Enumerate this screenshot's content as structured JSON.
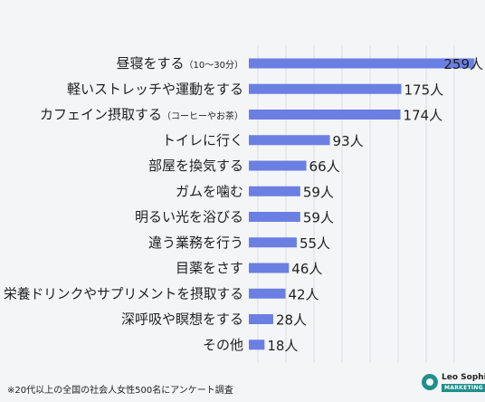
{
  "chart_data": {
    "type": "bar",
    "orientation": "horizontal",
    "categories": [
      {
        "main": "昼寝をする",
        "sub": "（10〜30分）"
      },
      {
        "main": "軽いストレッチや運動をする",
        "sub": ""
      },
      {
        "main": "カフェイン摂取する",
        "sub": "（コーヒーやお茶）"
      },
      {
        "main": "トイレに行く",
        "sub": ""
      },
      {
        "main": "部屋を換気する",
        "sub": ""
      },
      {
        "main": "ガムを噛む",
        "sub": ""
      },
      {
        "main": "明るい光を浴びる",
        "sub": ""
      },
      {
        "main": "違う業務を行う",
        "sub": ""
      },
      {
        "main": "目薬をさす",
        "sub": ""
      },
      {
        "main": "栄養ドリンクやサプリメントを摂取する",
        "sub": ""
      },
      {
        "main": "深呼吸や瞑想をする",
        "sub": ""
      },
      {
        "main": "その他",
        "sub": ""
      }
    ],
    "values": [
      259,
      175,
      174,
      93,
      66,
      59,
      59,
      55,
      46,
      42,
      28,
      18
    ],
    "value_unit": "人",
    "xlim": [
      0,
      270
    ],
    "bar_color": "#6b7fe3",
    "grid": true
  },
  "footnote": "※20代以上の全国の社会人女性500名にアンケート調査",
  "logo": {
    "name": "Leo Sophia",
    "tag": "MARKETING",
    "color": "#1f8f8a"
  }
}
